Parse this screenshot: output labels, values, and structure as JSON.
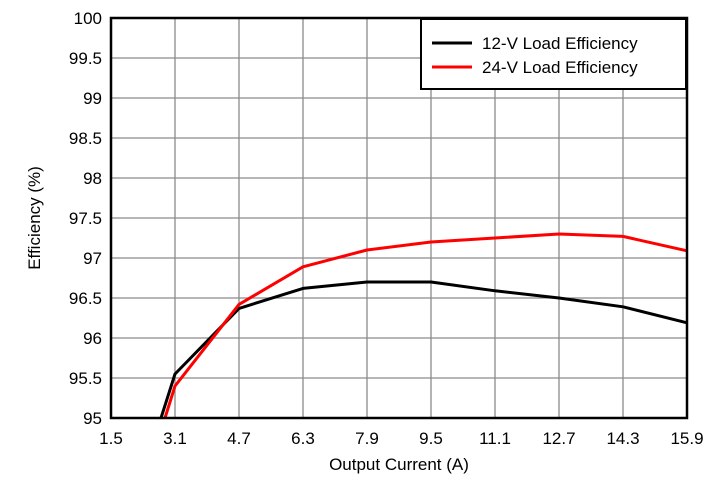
{
  "chart_data": {
    "type": "line",
    "xlabel": "Output Current (A)",
    "ylabel": "Efficiency (%)",
    "xlim": [
      1.5,
      15.9
    ],
    "ylim": [
      95,
      100
    ],
    "xticks": [
      "1.5",
      "3.1",
      "4.7",
      "6.3",
      "7.9",
      "9.5",
      "11.1",
      "12.7",
      "14.3",
      "15.9"
    ],
    "yticks": [
      "95",
      "95.5",
      "96",
      "96.5",
      "97",
      "97.5",
      "98",
      "98.5",
      "99",
      "99.5",
      "100"
    ],
    "grid": true,
    "legend_position": "top-right",
    "series": [
      {
        "name": "12-V Load Efficiency",
        "color": "#000000",
        "x": [
          2.75,
          3.1,
          4.7,
          6.3,
          7.9,
          9.5,
          11.1,
          12.7,
          14.3,
          15.9
        ],
        "y": [
          95.0,
          95.55,
          96.37,
          96.62,
          96.7,
          96.7,
          96.59,
          96.5,
          96.39,
          96.19
        ]
      },
      {
        "name": "24-V Load Efficiency",
        "color": "#ff0000",
        "x": [
          2.85,
          3.1,
          4.7,
          6.3,
          7.9,
          9.5,
          11.1,
          12.7,
          14.3,
          15.9
        ],
        "y": [
          95.0,
          95.4,
          96.42,
          96.89,
          97.1,
          97.2,
          97.25,
          97.3,
          97.27,
          97.09
        ]
      }
    ]
  }
}
